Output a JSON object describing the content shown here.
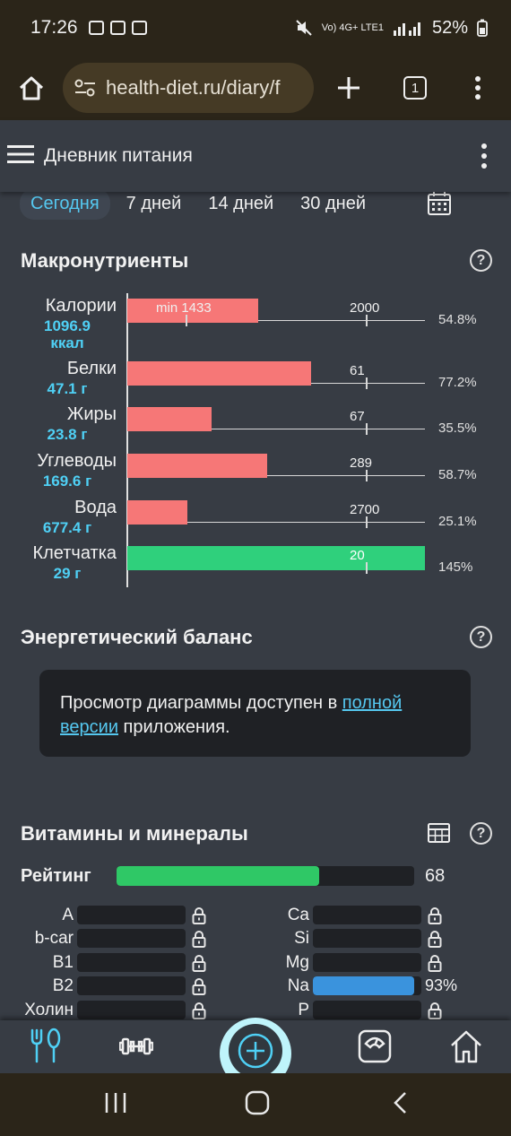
{
  "status_bar": {
    "time": "17:26",
    "network": "Vo) 4G+ LTE1",
    "battery": "52%"
  },
  "browser": {
    "url": "health-diet.ru/diary/f",
    "tab_count": "1"
  },
  "app": {
    "title": "Дневник питания"
  },
  "period_tabs": [
    {
      "label": "Сегодня",
      "active": true
    },
    {
      "label": "7 дней",
      "active": false
    },
    {
      "label": "14 дней",
      "active": false
    },
    {
      "label": "30 дней",
      "active": false
    }
  ],
  "macros": {
    "title": "Макронутриенты",
    "help": "?",
    "rows": [
      {
        "name": "Калории",
        "value": "1096.9",
        "unit": "ккал",
        "target_label": "2000",
        "min_label": "min 1433",
        "percent_label": "54.8%",
        "percent": 54.8,
        "status": "low"
      },
      {
        "name": "Белки",
        "value": "47.1 г",
        "unit": "",
        "target_label": "61",
        "min_label": "",
        "percent_label": "77.2%",
        "percent": 77.2,
        "status": "low"
      },
      {
        "name": "Жиры",
        "value": "23.8 г",
        "unit": "",
        "target_label": "67",
        "min_label": "",
        "percent_label": "35.5%",
        "percent": 35.5,
        "status": "low"
      },
      {
        "name": "Углеводы",
        "value": "169.6 г",
        "unit": "",
        "target_label": "289",
        "min_label": "",
        "percent_label": "58.7%",
        "percent": 58.7,
        "status": "low"
      },
      {
        "name": "Вода",
        "value": "677.4 г",
        "unit": "",
        "target_label": "2700",
        "min_label": "",
        "percent_label": "25.1%",
        "percent": 25.1,
        "status": "low"
      },
      {
        "name": "Клетчатка",
        "value": "29 г",
        "unit": "",
        "target_label": "20",
        "min_label": "",
        "percent_label": "145%",
        "percent": 145,
        "status": "ok"
      }
    ]
  },
  "energy": {
    "title": "Энергетический баланс",
    "help": "?",
    "message_before": "Просмотр диаграммы доступен в ",
    "message_link": "полной версии",
    "message_after": " приложения."
  },
  "vitamins": {
    "title": "Витамины и минералы",
    "help": "?",
    "rating_label": "Рейтинг",
    "rating_value": "68",
    "rating": 68,
    "left": [
      {
        "name": "A",
        "locked": true
      },
      {
        "name": "b-car",
        "locked": true
      },
      {
        "name": "B1",
        "locked": true
      },
      {
        "name": "B2",
        "locked": true
      },
      {
        "name": "Холин",
        "locked": true
      }
    ],
    "right": [
      {
        "name": "Ca",
        "locked": true,
        "percent_label": "",
        "percent": 0
      },
      {
        "name": "Si",
        "locked": true,
        "percent_label": "",
        "percent": 0
      },
      {
        "name": "Mg",
        "locked": true,
        "percent_label": "",
        "percent": 0
      },
      {
        "name": "Na",
        "locked": false,
        "percent_label": "93%",
        "percent": 93
      },
      {
        "name": "P",
        "locked": true,
        "percent_label": "",
        "percent": 0
      }
    ]
  },
  "bottom_nav": [
    "food-icon",
    "dumbbell-icon",
    "add-icon",
    "scale-icon",
    "home-icon"
  ],
  "colors": {
    "background": "#373c44",
    "accent_blue": "#55c8f0",
    "bar_low": "#f67777",
    "bar_ok": "#2fd07c",
    "rating_green": "#2fc866",
    "mineral_blue": "#3a93dd",
    "fab_ring": "#bff4fb"
  }
}
